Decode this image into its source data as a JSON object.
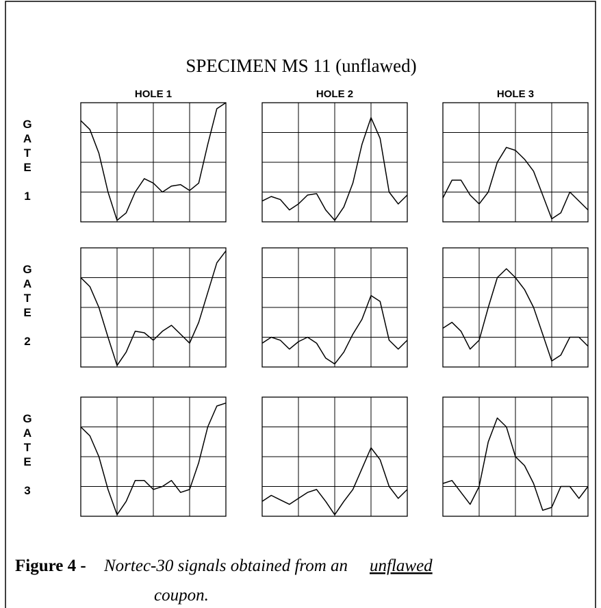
{
  "title": "SPECIMEN MS 11 (unflawed)",
  "columns": [
    "HOLE 1",
    "HOLE 2",
    "HOLE 3"
  ],
  "rows": [
    "GATE 1",
    "GATE 2",
    "GATE 3"
  ],
  "caption": {
    "label": "Figure 4 -",
    "text": "Nortec-30 signals obtained from an",
    "emphasis": "unflawed",
    "tail": "coupon."
  },
  "chart_data": [
    {
      "type": "line",
      "xlim": [
        0,
        4
      ],
      "ylim": [
        0,
        4
      ],
      "grid": true,
      "x": [
        0,
        0.25,
        0.5,
        0.75,
        1,
        1.25,
        1.5,
        1.75,
        2,
        2.25,
        2.5,
        2.75,
        3,
        3.25,
        3.5,
        3.75,
        4
      ],
      "values": [
        3.4,
        3.1,
        2.3,
        1.0,
        0.05,
        0.3,
        1.0,
        1.45,
        1.3,
        1.0,
        1.2,
        1.25,
        1.05,
        1.3,
        2.6,
        3.8,
        4.0
      ]
    },
    {
      "type": "line",
      "xlim": [
        0,
        4
      ],
      "ylim": [
        0,
        4
      ],
      "grid": true,
      "x": [
        0,
        0.25,
        0.5,
        0.75,
        1,
        1.25,
        1.5,
        1.75,
        2,
        2.25,
        2.5,
        2.75,
        3,
        3.25,
        3.5,
        3.75,
        4
      ],
      "values": [
        0.7,
        0.85,
        0.75,
        0.4,
        0.6,
        0.9,
        0.95,
        0.4,
        0.05,
        0.5,
        1.3,
        2.6,
        3.5,
        2.8,
        1.0,
        0.6,
        0.9
      ]
    },
    {
      "type": "line",
      "xlim": [
        0,
        4
      ],
      "ylim": [
        0,
        4
      ],
      "grid": true,
      "x": [
        0,
        0.25,
        0.5,
        0.75,
        1,
        1.25,
        1.5,
        1.75,
        2,
        2.25,
        2.5,
        2.75,
        3,
        3.25,
        3.5,
        3.75,
        4
      ],
      "values": [
        0.8,
        1.4,
        1.4,
        0.9,
        0.6,
        1.0,
        2.0,
        2.5,
        2.4,
        2.1,
        1.7,
        0.9,
        0.1,
        0.3,
        1.0,
        0.7,
        0.4
      ]
    },
    {
      "type": "line",
      "xlim": [
        0,
        4
      ],
      "ylim": [
        0,
        4
      ],
      "grid": true,
      "x": [
        0,
        0.25,
        0.5,
        0.75,
        1,
        1.25,
        1.5,
        1.75,
        2,
        2.25,
        2.5,
        2.75,
        3,
        3.25,
        3.5,
        3.75,
        4
      ],
      "values": [
        3.0,
        2.7,
        2.0,
        1.0,
        0.05,
        0.5,
        1.2,
        1.15,
        0.9,
        1.2,
        1.4,
        1.1,
        0.8,
        1.5,
        2.5,
        3.5,
        3.9
      ]
    },
    {
      "type": "line",
      "xlim": [
        0,
        4
      ],
      "ylim": [
        0,
        4
      ],
      "grid": true,
      "x": [
        0,
        0.25,
        0.5,
        0.75,
        1,
        1.25,
        1.5,
        1.75,
        2,
        2.25,
        2.5,
        2.75,
        3,
        3.25,
        3.5,
        3.75,
        4
      ],
      "values": [
        0.8,
        1.0,
        0.9,
        0.6,
        0.85,
        1.0,
        0.8,
        0.3,
        0.1,
        0.5,
        1.1,
        1.6,
        2.4,
        2.2,
        0.9,
        0.6,
        0.9
      ]
    },
    {
      "type": "line",
      "xlim": [
        0,
        4
      ],
      "ylim": [
        0,
        4
      ],
      "grid": true,
      "x": [
        0,
        0.25,
        0.5,
        0.75,
        1,
        1.25,
        1.5,
        1.75,
        2,
        2.25,
        2.5,
        2.75,
        3,
        3.25,
        3.5,
        3.75,
        4
      ],
      "values": [
        1.3,
        1.5,
        1.2,
        0.6,
        0.9,
        2.0,
        3.0,
        3.3,
        3.0,
        2.6,
        2.0,
        1.1,
        0.2,
        0.4,
        1.0,
        1.0,
        0.7
      ]
    },
    {
      "type": "line",
      "xlim": [
        0,
        4
      ],
      "ylim": [
        0,
        4
      ],
      "grid": true,
      "x": [
        0,
        0.25,
        0.5,
        0.75,
        1,
        1.25,
        1.5,
        1.75,
        2,
        2.25,
        2.5,
        2.75,
        3,
        3.25,
        3.5,
        3.75,
        4
      ],
      "values": [
        3.0,
        2.7,
        2.0,
        0.9,
        0.05,
        0.5,
        1.2,
        1.2,
        0.9,
        1.0,
        1.2,
        0.8,
        0.9,
        1.8,
        3.0,
        3.7,
        3.8
      ]
    },
    {
      "type": "line",
      "xlim": [
        0,
        4
      ],
      "ylim": [
        0,
        4
      ],
      "grid": true,
      "x": [
        0,
        0.25,
        0.5,
        0.75,
        1,
        1.25,
        1.5,
        1.75,
        2,
        2.25,
        2.5,
        2.75,
        3,
        3.25,
        3.5,
        3.75,
        4
      ],
      "values": [
        0.5,
        0.7,
        0.55,
        0.4,
        0.6,
        0.8,
        0.9,
        0.5,
        0.05,
        0.5,
        0.9,
        1.6,
        2.3,
        1.9,
        1.0,
        0.6,
        0.9
      ]
    },
    {
      "type": "line",
      "xlim": [
        0,
        4
      ],
      "ylim": [
        0,
        4
      ],
      "grid": true,
      "x": [
        0,
        0.25,
        0.5,
        0.75,
        1,
        1.25,
        1.5,
        1.75,
        2,
        2.25,
        2.5,
        2.75,
        3,
        3.25,
        3.5,
        3.75,
        4
      ],
      "values": [
        1.1,
        1.2,
        0.8,
        0.4,
        1.0,
        2.5,
        3.3,
        3.0,
        2.0,
        1.7,
        1.1,
        0.2,
        0.3,
        1.0,
        1.0,
        0.6,
        1.0
      ]
    }
  ]
}
